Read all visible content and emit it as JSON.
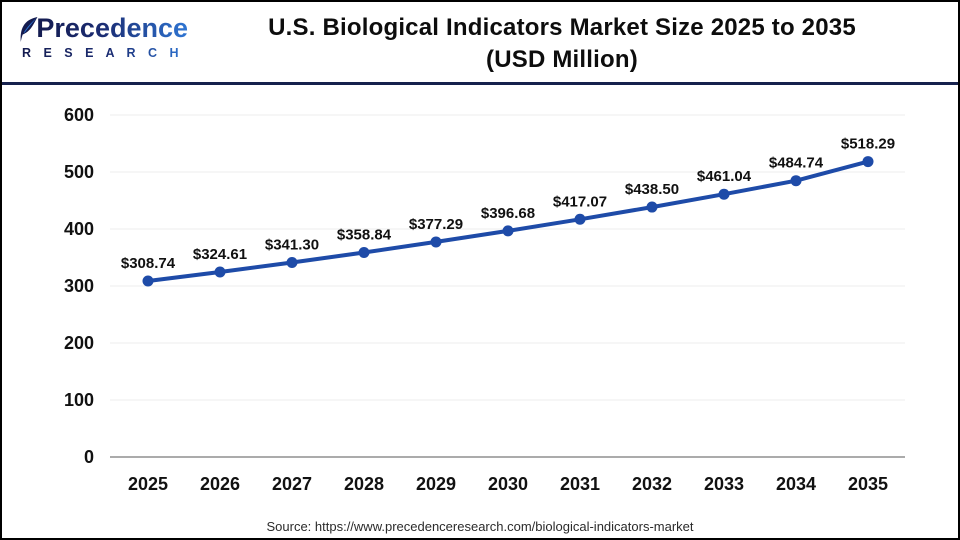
{
  "header": {
    "logo": {
      "name": "Precedence",
      "subtitle": "R E S E A R C H"
    },
    "title_line1": "U.S. Biological Indicators Market Size 2025 to 2035",
    "title_line2": "(USD Million)"
  },
  "chart_data": {
    "type": "line",
    "title": "U.S. Biological Indicators Market Size 2025 to 2035 (USD Million)",
    "categories": [
      "2025",
      "2026",
      "2027",
      "2028",
      "2029",
      "2030",
      "2031",
      "2032",
      "2033",
      "2034",
      "2035"
    ],
    "values": [
      308.74,
      324.61,
      341.3,
      358.84,
      377.29,
      396.68,
      417.07,
      438.5,
      461.04,
      484.74,
      518.29
    ],
    "series_name": "U.S. Biological Indicators Market Size (USD Million)",
    "label_prefix": "$",
    "ylim": [
      0,
      600
    ],
    "ytick_step": 100,
    "grid": true,
    "legend": "none",
    "line_color": "#1e4ba8",
    "grid_color": "#ececec",
    "axis_color": "#ababab"
  },
  "footer": {
    "source": "Source: https://www.precedenceresearch.com/biological-indicators-market"
  },
  "colors": {
    "header_divider": "#16214d",
    "logo_navy": "#141b4f",
    "logo_blue": "#2e75d3",
    "title_text": "#0d0d0d"
  }
}
